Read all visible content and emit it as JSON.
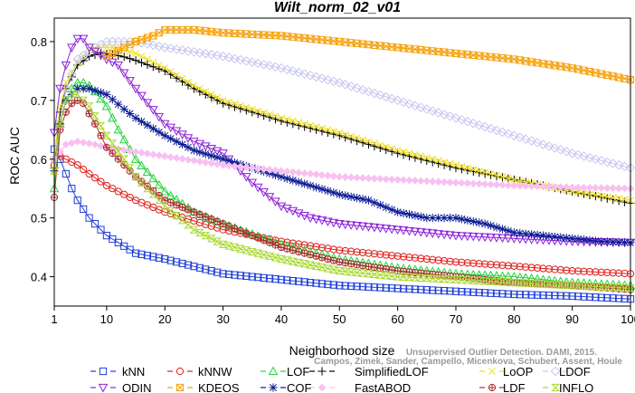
{
  "chart_data": {
    "type": "line",
    "title": "Wilt_norm_02_v01",
    "xlabel": "Neighborhood size",
    "ylabel": "ROC AUC",
    "xlim": [
      1,
      100
    ],
    "ylim": [
      0.35,
      0.84
    ],
    "xticks": [
      1,
      10,
      20,
      30,
      40,
      50,
      60,
      70,
      80,
      90,
      100
    ],
    "yticks": [
      0.4,
      0.5,
      0.6,
      0.7,
      0.8
    ],
    "grid": false,
    "legend_placement": "bottom",
    "source_note": "Campos, Zimek, Sander, Campello, Micenkova, Schubert, Assent, Houle",
    "source_note_2": "Unsupervised Outlier Detection. DAMI, 2015.",
    "series": [
      {
        "name": "kNN",
        "color": "#1f3fd8",
        "marker": "square",
        "points": [
          [
            1,
            0.617
          ],
          [
            2,
            0.6
          ],
          [
            3,
            0.575
          ],
          [
            4,
            0.55
          ],
          [
            5,
            0.53
          ],
          [
            7,
            0.5
          ],
          [
            10,
            0.47
          ],
          [
            15,
            0.44
          ],
          [
            20,
            0.43
          ],
          [
            30,
            0.405
          ],
          [
            40,
            0.395
          ],
          [
            50,
            0.385
          ],
          [
            60,
            0.38
          ],
          [
            70,
            0.375
          ],
          [
            80,
            0.37
          ],
          [
            90,
            0.367
          ],
          [
            100,
            0.362
          ]
        ]
      },
      {
        "name": "kNNW",
        "color": "#e0201b",
        "marker": "circle",
        "points": [
          [
            1,
            0.59
          ],
          [
            2,
            0.605
          ],
          [
            3,
            0.6
          ],
          [
            5,
            0.59
          ],
          [
            7,
            0.575
          ],
          [
            10,
            0.555
          ],
          [
            15,
            0.53
          ],
          [
            20,
            0.51
          ],
          [
            30,
            0.48
          ],
          [
            40,
            0.46
          ],
          [
            50,
            0.445
          ],
          [
            60,
            0.435
          ],
          [
            70,
            0.425
          ],
          [
            80,
            0.418
          ],
          [
            90,
            0.41
          ],
          [
            100,
            0.405
          ]
        ]
      },
      {
        "name": "LOF",
        "color": "#22d43b",
        "marker": "triangle-up",
        "points": [
          [
            1,
            0.55
          ],
          [
            2,
            0.66
          ],
          [
            3,
            0.7
          ],
          [
            4,
            0.72
          ],
          [
            5,
            0.73
          ],
          [
            6,
            0.73
          ],
          [
            7,
            0.725
          ],
          [
            8,
            0.715
          ],
          [
            10,
            0.69
          ],
          [
            12,
            0.65
          ],
          [
            15,
            0.6
          ],
          [
            20,
            0.545
          ],
          [
            25,
            0.51
          ],
          [
            30,
            0.49
          ],
          [
            40,
            0.455
          ],
          [
            50,
            0.43
          ],
          [
            60,
            0.415
          ],
          [
            70,
            0.405
          ],
          [
            80,
            0.4
          ],
          [
            90,
            0.39
          ],
          [
            100,
            0.385
          ]
        ]
      },
      {
        "name": "SimplifiedLOF",
        "color": "#000000",
        "marker": "plus",
        "points": [
          [
            1,
            0.585
          ],
          [
            2,
            0.68
          ],
          [
            3,
            0.72
          ],
          [
            5,
            0.76
          ],
          [
            7,
            0.775
          ],
          [
            9,
            0.78
          ],
          [
            11,
            0.778
          ],
          [
            13,
            0.774
          ],
          [
            15,
            0.768
          ],
          [
            20,
            0.75
          ],
          [
            25,
            0.72
          ],
          [
            30,
            0.695
          ],
          [
            40,
            0.665
          ],
          [
            50,
            0.64
          ],
          [
            60,
            0.61
          ],
          [
            70,
            0.585
          ],
          [
            80,
            0.565
          ],
          [
            90,
            0.545
          ],
          [
            100,
            0.525
          ]
        ]
      },
      {
        "name": "LoOP",
        "color": "#f0e020",
        "marker": "cross",
        "points": [
          [
            1,
            0.6
          ],
          [
            2,
            0.69
          ],
          [
            3,
            0.73
          ],
          [
            5,
            0.765
          ],
          [
            7,
            0.785
          ],
          [
            9,
            0.79
          ],
          [
            11,
            0.79
          ],
          [
            13,
            0.785
          ],
          [
            15,
            0.78
          ],
          [
            20,
            0.755
          ],
          [
            25,
            0.725
          ],
          [
            30,
            0.7
          ],
          [
            40,
            0.67
          ],
          [
            50,
            0.645
          ],
          [
            60,
            0.615
          ],
          [
            70,
            0.59
          ],
          [
            80,
            0.565
          ],
          [
            90,
            0.545
          ],
          [
            100,
            0.53
          ]
        ]
      },
      {
        "name": "LDOF",
        "color": "#c8c8f0",
        "marker": "diamond",
        "points": [
          [
            1,
            0.6
          ],
          [
            3,
            0.72
          ],
          [
            5,
            0.77
          ],
          [
            8,
            0.79
          ],
          [
            10,
            0.8
          ],
          [
            15,
            0.8
          ],
          [
            20,
            0.79
          ],
          [
            30,
            0.775
          ],
          [
            40,
            0.755
          ],
          [
            50,
            0.73
          ],
          [
            60,
            0.7
          ],
          [
            70,
            0.67
          ],
          [
            80,
            0.64
          ],
          [
            90,
            0.61
          ],
          [
            100,
            0.585
          ]
        ]
      },
      {
        "name": "ODIN",
        "color": "#8c22d8",
        "marker": "triangle-down",
        "points": [
          [
            1,
            0.645
          ],
          [
            2,
            0.72
          ],
          [
            3,
            0.76
          ],
          [
            4,
            0.79
          ],
          [
            5,
            0.805
          ],
          [
            6,
            0.805
          ],
          [
            7,
            0.79
          ],
          [
            10,
            0.77
          ],
          [
            12,
            0.76
          ],
          [
            15,
            0.72
          ],
          [
            20,
            0.66
          ],
          [
            25,
            0.63
          ],
          [
            30,
            0.61
          ],
          [
            35,
            0.56
          ],
          [
            40,
            0.52
          ],
          [
            45,
            0.5
          ],
          [
            50,
            0.49
          ],
          [
            60,
            0.48
          ],
          [
            70,
            0.47
          ],
          [
            80,
            0.465
          ],
          [
            90,
            0.46
          ],
          [
            100,
            0.458
          ]
        ]
      },
      {
        "name": "KDEOS",
        "color": "#f5a20e",
        "marker": "square-x",
        "points": [
          [
            10,
            0.775
          ],
          [
            12,
            0.785
          ],
          [
            15,
            0.8
          ],
          [
            18,
            0.81
          ],
          [
            20,
            0.82
          ],
          [
            25,
            0.82
          ],
          [
            30,
            0.815
          ],
          [
            40,
            0.81
          ],
          [
            50,
            0.8
          ],
          [
            60,
            0.79
          ],
          [
            70,
            0.78
          ],
          [
            80,
            0.77
          ],
          [
            90,
            0.755
          ],
          [
            100,
            0.735
          ]
        ]
      },
      {
        "name": "COF",
        "color": "#0c1a94",
        "marker": "asterisk",
        "points": [
          [
            1,
            0.58
          ],
          [
            2,
            0.66
          ],
          [
            3,
            0.7
          ],
          [
            5,
            0.72
          ],
          [
            7,
            0.72
          ],
          [
            10,
            0.71
          ],
          [
            13,
            0.685
          ],
          [
            15,
            0.67
          ],
          [
            20,
            0.64
          ],
          [
            25,
            0.615
          ],
          [
            30,
            0.6
          ],
          [
            35,
            0.585
          ],
          [
            40,
            0.57
          ],
          [
            45,
            0.555
          ],
          [
            50,
            0.54
          ],
          [
            55,
            0.53
          ],
          [
            60,
            0.51
          ],
          [
            65,
            0.5
          ],
          [
            70,
            0.5
          ],
          [
            75,
            0.49
          ],
          [
            80,
            0.475
          ],
          [
            85,
            0.47
          ],
          [
            90,
            0.465
          ],
          [
            95,
            0.46
          ],
          [
            100,
            0.458
          ]
        ]
      },
      {
        "name": "FastABOD",
        "color": "#f8c0f0",
        "marker": "diamond-filled",
        "points": [
          [
            1,
            0.6
          ],
          [
            3,
            0.625
          ],
          [
            5,
            0.63
          ],
          [
            8,
            0.625
          ],
          [
            10,
            0.62
          ],
          [
            20,
            0.605
          ],
          [
            30,
            0.59
          ],
          [
            40,
            0.58
          ],
          [
            50,
            0.57
          ],
          [
            60,
            0.565
          ],
          [
            70,
            0.56
          ],
          [
            80,
            0.555
          ],
          [
            90,
            0.552
          ],
          [
            100,
            0.55
          ]
        ]
      },
      {
        "name": "LDF",
        "color": "#b02c30",
        "marker": "circle-plus",
        "points": [
          [
            1,
            0.535
          ],
          [
            2,
            0.65
          ],
          [
            3,
            0.68
          ],
          [
            4,
            0.695
          ],
          [
            5,
            0.7
          ],
          [
            6,
            0.695
          ],
          [
            8,
            0.66
          ],
          [
            10,
            0.62
          ],
          [
            15,
            0.57
          ],
          [
            20,
            0.53
          ],
          [
            30,
            0.49
          ],
          [
            40,
            0.45
          ],
          [
            50,
            0.425
          ],
          [
            60,
            0.41
          ],
          [
            70,
            0.4
          ],
          [
            80,
            0.39
          ],
          [
            90,
            0.385
          ],
          [
            100,
            0.378
          ]
        ]
      },
      {
        "name": "INFLO",
        "color": "#a8d830",
        "marker": "hourglass",
        "points": [
          [
            1,
            0.58
          ],
          [
            2,
            0.66
          ],
          [
            3,
            0.7
          ],
          [
            4,
            0.71
          ],
          [
            5,
            0.71
          ],
          [
            7,
            0.69
          ],
          [
            10,
            0.64
          ],
          [
            13,
            0.6
          ],
          [
            15,
            0.57
          ],
          [
            20,
            0.52
          ],
          [
            25,
            0.48
          ],
          [
            30,
            0.455
          ],
          [
            40,
            0.43
          ],
          [
            50,
            0.41
          ],
          [
            60,
            0.4
          ],
          [
            70,
            0.395
          ],
          [
            80,
            0.39
          ],
          [
            90,
            0.385
          ],
          [
            100,
            0.38
          ]
        ]
      }
    ]
  }
}
